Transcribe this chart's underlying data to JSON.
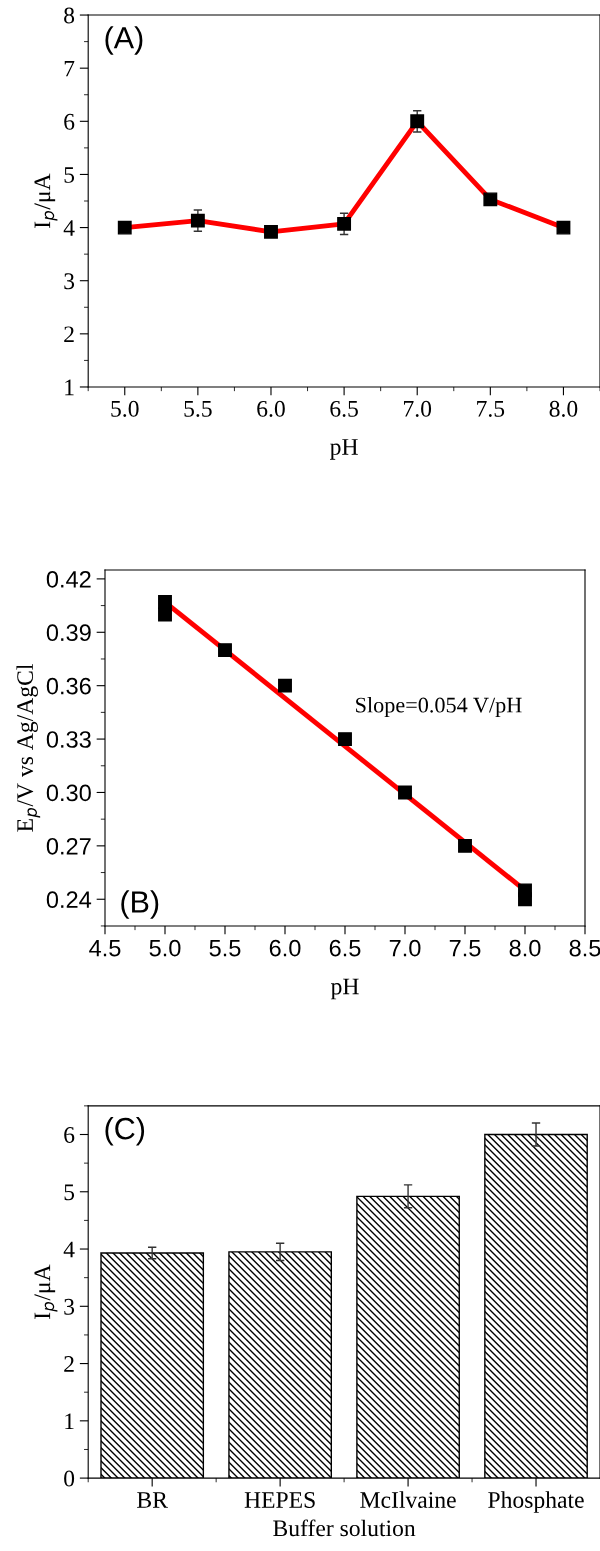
{
  "chart_data": [
    {
      "type": "line",
      "xlabel": "pH",
      "ylabel": "I$_{p}$/μA",
      "annotations": [
        "(A)"
      ],
      "x": [
        5.0,
        5.5,
        6.0,
        6.5,
        7.0,
        7.5,
        8.0
      ],
      "series": [
        {
          "color": "#ff0000",
          "values": [
            4.0,
            4.13,
            3.92,
            4.07,
            6.0,
            4.53,
            4.0
          ],
          "errors": [
            0.08,
            0.2,
            null,
            0.2,
            0.2,
            null,
            null
          ]
        }
      ],
      "marker": "square",
      "line_style": "solid",
      "xlim": [
        4.75,
        8.25
      ],
      "xticks": [
        {
          "value": 5,
          "label": "5.0"
        },
        {
          "value": 5.5,
          "label": "5.5"
        },
        {
          "value": 6,
          "label": "6.0"
        },
        {
          "value": 6.5,
          "label": "6.5"
        },
        {
          "value": 7,
          "label": "7.0"
        },
        {
          "value": 7.5,
          "label": "7.5"
        },
        {
          "value": 8,
          "label": "8.0"
        }
      ],
      "ylim": [
        1,
        8
      ],
      "yticks": [
        1,
        2,
        3,
        4,
        5,
        6,
        7,
        8
      ],
      "grid": false,
      "legend": false
    },
    {
      "type": "scatter",
      "xlabel": "pH",
      "ylabel": "E$_{p}$/V vs Ag/AgCl",
      "annotations": [
        "(B)",
        "Slope=0.054 V/pH"
      ],
      "x": [
        5.0,
        5.5,
        6.0,
        6.5,
        7.0,
        7.5,
        8.0
      ],
      "series": [
        {
          "type": "scatter",
          "color": "#000000",
          "values": [
            0.4,
            0.38,
            0.36,
            0.33,
            0.3,
            0.27,
            0.24
          ]
        },
        {
          "type": "line",
          "color": "#ff0000",
          "x": [
            5.0,
            8.0
          ],
          "values": [
            0.407,
            0.245
          ]
        }
      ],
      "marker": "square",
      "xlim": [
        4.5,
        8.5
      ],
      "xticks": [
        {
          "value": 4.5,
          "label": "4.5"
        },
        {
          "value": 5,
          "label": "5.0"
        },
        {
          "value": 5.5,
          "label": "5.5"
        },
        {
          "value": 6,
          "label": "6.0"
        },
        {
          "value": 6.5,
          "label": "6.5"
        },
        {
          "value": 7,
          "label": "7.0"
        },
        {
          "value": 7.5,
          "label": "7.5"
        },
        {
          "value": 8,
          "label": "8.0"
        },
        {
          "value": 8.5,
          "label": "8.5"
        }
      ],
      "ylim": [
        0.225,
        0.425
      ],
      "yticks": [
        {
          "value": 0.24,
          "label": "0.24"
        },
        {
          "value": 0.27,
          "label": "0.27"
        },
        {
          "value": 0.3,
          "label": "0.30"
        },
        {
          "value": 0.33,
          "label": "0.33"
        },
        {
          "value": 0.36,
          "label": "0.36"
        },
        {
          "value": 0.39,
          "label": "0.39"
        },
        {
          "value": 0.42,
          "label": "0.42"
        }
      ],
      "grid": false,
      "legend": false
    },
    {
      "type": "bar",
      "xlabel": "Buffer solution",
      "ylabel": "I$_{p}$/μA",
      "annotations": [
        "(C)"
      ],
      "categories": [
        "BR",
        "HEPES",
        "McIlvaine",
        "Phosphate"
      ],
      "values": [
        3.93,
        3.95,
        4.92,
        6.0
      ],
      "errors": [
        0.1,
        0.15,
        0.2,
        0.2
      ],
      "color": "#000000",
      "ylim": [
        0,
        6.5
      ],
      "yticks": [
        0,
        1,
        2,
        3,
        4,
        5,
        6
      ],
      "grid": false,
      "legend": false
    }
  ]
}
